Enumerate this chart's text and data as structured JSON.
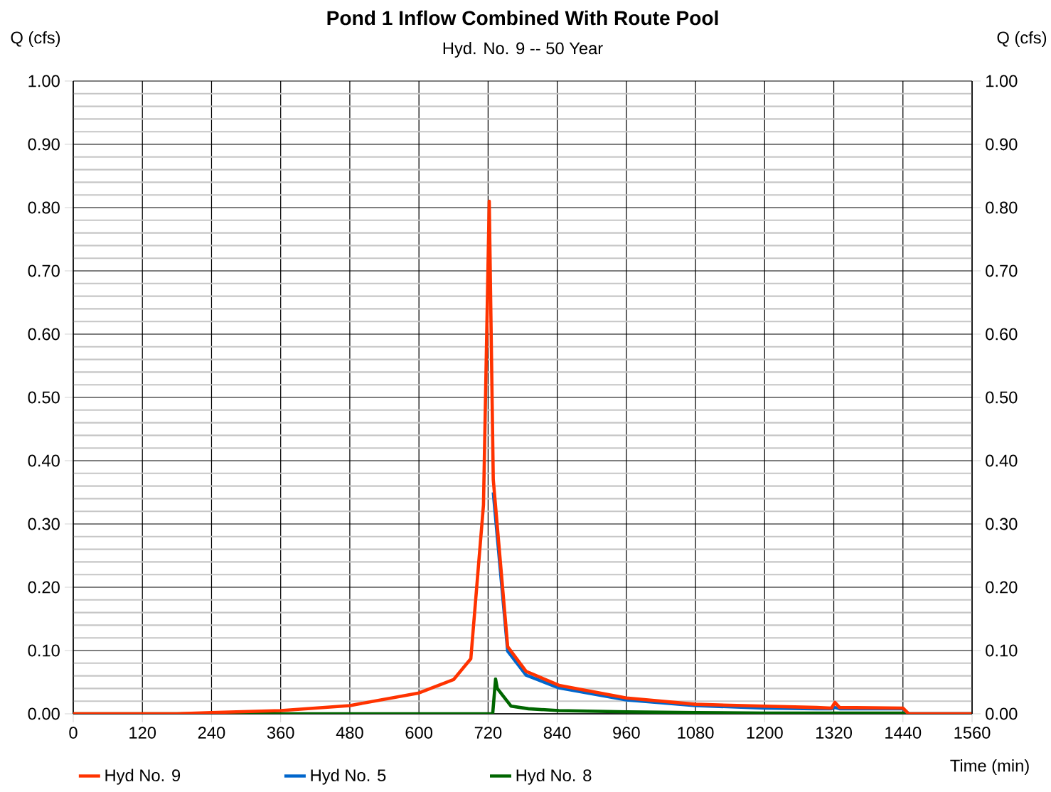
{
  "chart_data": {
    "type": "line",
    "title": "Pond 1 Inflow Combined With Route Pool",
    "subtitle": "Hyd. No. 9 -- 50 Year",
    "xlabel": "Time (min)",
    "ylabel": "Q (cfs)",
    "y2label": "Q (cfs)",
    "xlim": [
      0,
      1560
    ],
    "xticks": [
      0,
      120,
      240,
      360,
      480,
      600,
      720,
      840,
      960,
      1080,
      1200,
      1320,
      1440,
      1560
    ],
    "ylim": [
      0,
      1
    ],
    "yticks": [
      {
        "value": 0,
        "label": "0.00"
      },
      {
        "value": 0.1,
        "label": "0.10"
      },
      {
        "value": 0.2,
        "label": "0.20"
      },
      {
        "value": 0.3,
        "label": "0.30"
      },
      {
        "value": 0.4,
        "label": "0.40"
      },
      {
        "value": 0.5,
        "label": "0.50"
      },
      {
        "value": 0.6,
        "label": "0.60"
      },
      {
        "value": 0.7,
        "label": "0.70"
      },
      {
        "value": 0.8,
        "label": "0.80"
      },
      {
        "value": 0.9,
        "label": "0.90"
      },
      {
        "value": 1,
        "label": "1.00"
      }
    ],
    "y2lim": [
      0,
      1
    ],
    "y2ticks": [
      {
        "value": 0,
        "label": "0.00"
      },
      {
        "value": 0.1,
        "label": "0.10"
      },
      {
        "value": 0.2,
        "label": "0.20"
      },
      {
        "value": 0.3,
        "label": "0.30"
      },
      {
        "value": 0.4,
        "label": "0.40"
      },
      {
        "value": 0.5,
        "label": "0.50"
      },
      {
        "value": 0.6,
        "label": "0.60"
      },
      {
        "value": 0.7,
        "label": "0.70"
      },
      {
        "value": 0.8,
        "label": "0.80"
      },
      {
        "value": 0.9,
        "label": "0.90"
      },
      {
        "value": 1,
        "label": "1.00"
      }
    ],
    "grid": true,
    "legend": "bottom",
    "marker": "none",
    "line_style": "solid",
    "series": [
      {
        "name": "Hyd No. 9",
        "color": "#ff3300",
        "x": [
          0,
          180,
          240,
          360,
          480,
          600,
          660,
          690,
          712,
          722,
          729,
          754,
          786,
          843,
          960,
          1080,
          1200,
          1290,
          1316,
          1322,
          1330,
          1440,
          1450,
          1560
        ],
        "values": [
          0,
          0,
          0.002,
          0.005,
          0.013,
          0.033,
          0.054,
          0.087,
          0.33,
          0.81,
          0.37,
          0.106,
          0.067,
          0.045,
          0.025,
          0.015,
          0.012,
          0.01,
          0.009,
          0.018,
          0.01,
          0.009,
          0,
          0
        ]
      },
      {
        "name": "Hyd No. 5",
        "color": "#0066cc",
        "x": [
          729,
          754,
          786,
          843,
          960,
          1080,
          1200,
          1290,
          1316,
          1322,
          1330,
          1440,
          1450,
          1560
        ],
        "values": [
          0.35,
          0.099,
          0.061,
          0.041,
          0.022,
          0.013,
          0.009,
          0.008,
          0.008,
          0.01,
          0.008,
          0.008,
          0,
          0
        ]
      },
      {
        "name": "Hyd No. 8",
        "color": "#006600",
        "x": [
          0,
          728,
          733,
          736,
          760,
          790,
          843,
          960,
          1080,
          1200,
          1290,
          1440,
          1450,
          1560
        ],
        "values": [
          0,
          0,
          0.055,
          0.04,
          0.012,
          0.008,
          0.005,
          0.003,
          0.002,
          0.001,
          0.001,
          0.001,
          0,
          0
        ]
      }
    ]
  }
}
